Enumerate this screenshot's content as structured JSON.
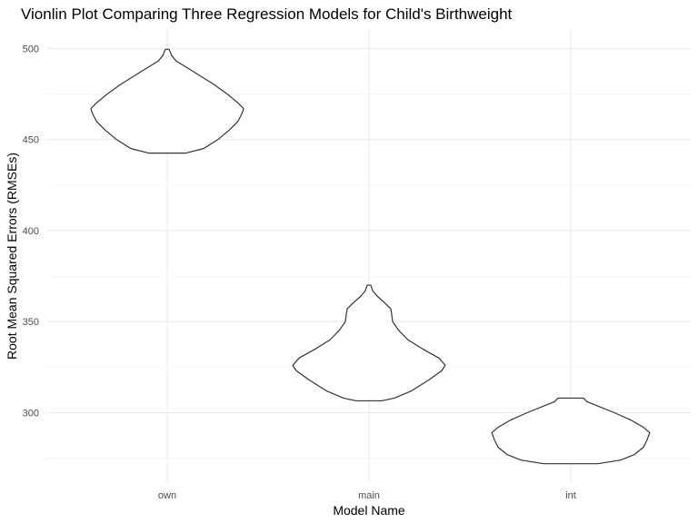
{
  "chart_data": {
    "type": "violin",
    "title": "Vionlin Plot Comparing Three Regression Models for Child's Birthweight",
    "xlabel": "Model Name",
    "ylabel": "Root Mean Squared Errors (RMSEs)",
    "categories": [
      "own",
      "main",
      "int"
    ],
    "ylim": [
      265,
      510
    ],
    "yticks": [
      300,
      350,
      400,
      450,
      500
    ],
    "grid": true,
    "violins": [
      {
        "category": "own",
        "min": 442.5,
        "max": 499.5,
        "density": [
          [
            442.5,
            0.2
          ],
          [
            445,
            0.4
          ],
          [
            450,
            0.56
          ],
          [
            455,
            0.68
          ],
          [
            460,
            0.78
          ],
          [
            465,
            0.83
          ],
          [
            467,
            0.84
          ],
          [
            470,
            0.78
          ],
          [
            475,
            0.66
          ],
          [
            480,
            0.52
          ],
          [
            485,
            0.36
          ],
          [
            490,
            0.2
          ],
          [
            493,
            0.1
          ],
          [
            496,
            0.05
          ],
          [
            499.5,
            0.02
          ]
        ]
      },
      {
        "category": "main",
        "min": 306.5,
        "max": 370,
        "density": [
          [
            306.5,
            0.14
          ],
          [
            308,
            0.28
          ],
          [
            312,
            0.47
          ],
          [
            318,
            0.66
          ],
          [
            323,
            0.8
          ],
          [
            326,
            0.84
          ],
          [
            330,
            0.77
          ],
          [
            335,
            0.59
          ],
          [
            340,
            0.43
          ],
          [
            345,
            0.33
          ],
          [
            350,
            0.26
          ],
          [
            354,
            0.25
          ],
          [
            357,
            0.24
          ],
          [
            360,
            0.18
          ],
          [
            364,
            0.09
          ],
          [
            367,
            0.04
          ],
          [
            370,
            0.02
          ]
        ]
      },
      {
        "category": "int",
        "min": 272,
        "max": 308,
        "density": [
          [
            272,
            0.3
          ],
          [
            274,
            0.55
          ],
          [
            277,
            0.7
          ],
          [
            281,
            0.8
          ],
          [
            285,
            0.84
          ],
          [
            289,
            0.87
          ],
          [
            292,
            0.8
          ],
          [
            296,
            0.66
          ],
          [
            300,
            0.48
          ],
          [
            304,
            0.28
          ],
          [
            306,
            0.18
          ],
          [
            308,
            0.14
          ]
        ]
      }
    ]
  }
}
